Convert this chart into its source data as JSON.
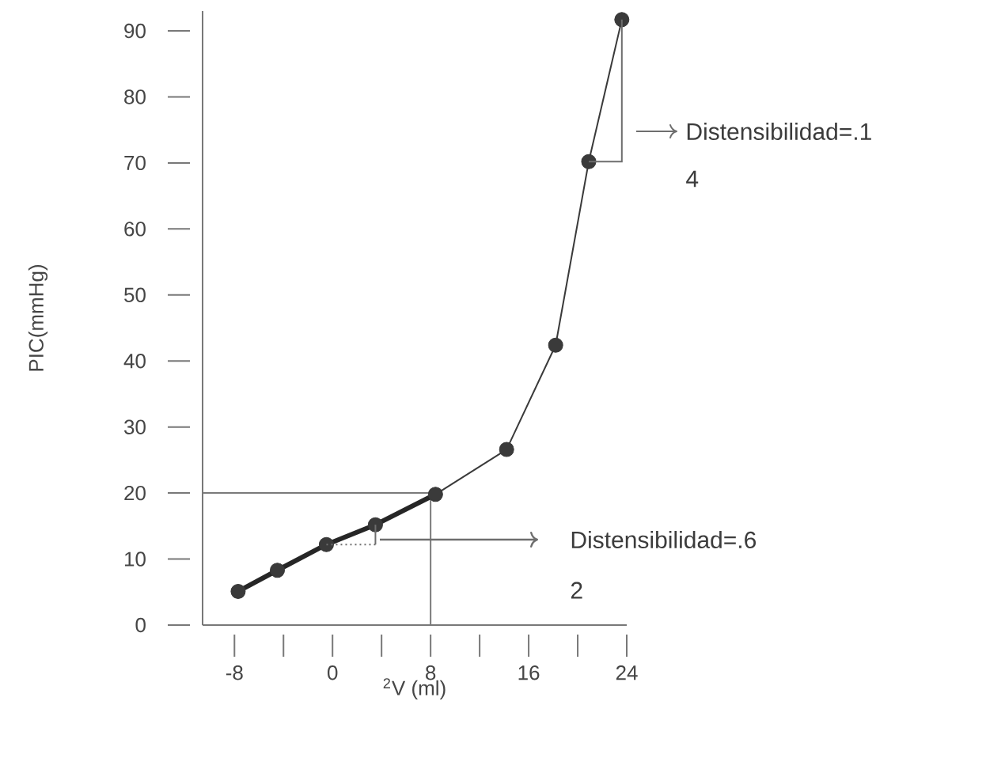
{
  "chart_data": {
    "type": "line",
    "xlabel": "$^{2}$V (ml)",
    "ylabel": "PIC(mmHg)",
    "xlim": [
      -10.6,
      24
    ],
    "ylim": [
      0,
      93
    ],
    "xticks": [
      -8,
      {
        "value": -4,
        "label": null
      },
      0,
      {
        "value": 4,
        "label": null
      },
      8,
      {
        "value": 12,
        "label": null
      },
      16,
      {
        "value": 20,
        "label": null
      },
      24
    ],
    "yticks": [
      0,
      10,
      20,
      30,
      40,
      50,
      60,
      70,
      80,
      90
    ],
    "marker": "circle",
    "line_style": "solid",
    "grid": false,
    "series": [
      {
        "color": "#3a3a3a",
        "x": [
          -7.7,
          -4.5,
          -0.5,
          3.5,
          8.4,
          14.2,
          18.2,
          20.9,
          23.6
        ],
        "values": [
          5.1,
          8.3,
          12.2,
          15.2,
          19.8,
          26.6,
          42.4,
          70.2,
          91.7
        ]
      },
      {
        "color": "#262626",
        "marker": "none",
        "x": [
          -7.7,
          -4.5,
          -0.5,
          3.5,
          8.4
        ],
        "values": [
          5.1,
          8.3,
          12.2,
          15.2,
          19.8
        ]
      }
    ],
    "ref_lines": [
      {
        "axis": "y",
        "value": 20,
        "color": "#7a7a7a"
      },
      {
        "axis": "x",
        "value": 8,
        "color": "#7a7a7a"
      }
    ],
    "annotations": [
      "Distensibilidad=.1",
      "4",
      "Distensibilidad=.6",
      "2"
    ]
  }
}
